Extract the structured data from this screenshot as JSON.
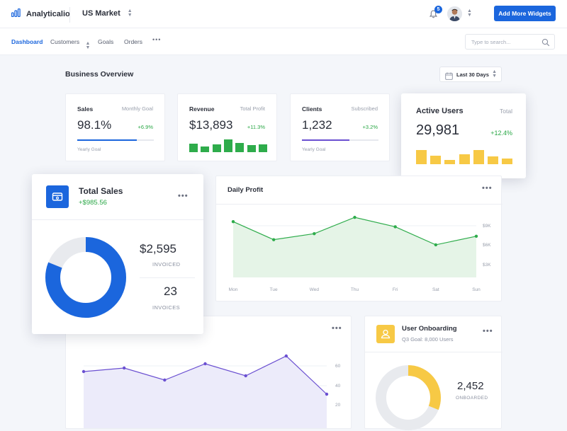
{
  "app": {
    "name": "Analyticalio",
    "market": "US Market",
    "notifications": "5",
    "add_widgets_label": "Add More Widgets"
  },
  "nav": {
    "items": [
      {
        "label": "Dashboard",
        "active": true
      },
      {
        "label": "Customers",
        "active": false
      },
      {
        "label": "Goals",
        "active": false
      },
      {
        "label": "Orders",
        "active": false
      }
    ],
    "more": "•••",
    "search_placeholder": "Type to search..."
  },
  "overview": {
    "title": "Business Overview",
    "range": "Last 30 Days"
  },
  "cards": {
    "sales": {
      "title": "Sales",
      "sub": "Monthly Goal",
      "value": "98.1%",
      "change": "+6.9%",
      "footer": "Yearly Goal",
      "progress": 0.78,
      "color": "#1b66dd"
    },
    "revenue": {
      "title": "Revenue",
      "sub": "Total Profit",
      "value": "$13,893",
      "change": "+11.3%",
      "color": "#2eac4b",
      "bars": [
        0.65,
        0.45,
        0.6,
        1.0,
        0.72,
        0.55,
        0.62
      ]
    },
    "clients": {
      "title": "Clients",
      "sub": "Subscribed",
      "value": "1,232",
      "change": "+3.2%",
      "footer": "Yearly Goal",
      "progress": 0.62,
      "color": "#6a4fd1"
    },
    "active_users": {
      "title": "Active Users",
      "sub": "Total",
      "value": "29,981",
      "change": "+12.4%",
      "color": "#f7c945",
      "bars": [
        1.0,
        0.62,
        0.32,
        0.7,
        1.0,
        0.55,
        0.42
      ]
    }
  },
  "total_sales": {
    "title": "Total Sales",
    "delta": "+$985.56",
    "invoiced_value": "$2,595",
    "invoiced_label": "INVOICED",
    "invoices_value": "23",
    "invoices_label": "INVOICES",
    "invoiced_share": 0.81,
    "color": "#1b66dd"
  },
  "daily_profit": {
    "title": "Daily Profit",
    "chart_data": {
      "type": "area",
      "x": [
        "Mon",
        "Tue",
        "Wed",
        "Thu",
        "Fri",
        "Sat",
        "Sun"
      ],
      "series": [
        {
          "values": [
            8.5,
            6.4,
            7.1,
            9.0,
            7.9,
            5.8,
            6.8
          ]
        }
      ],
      "yticks": [
        "$9K",
        "$6K",
        "$3K"
      ],
      "ylim": [
        2,
        10
      ],
      "color": "#2eac4b"
    }
  },
  "bottom_chart": {
    "chart_data": {
      "type": "area",
      "series": [
        {
          "values": [
            51,
            53.5,
            45,
            56.5,
            48,
            62,
            35
          ]
        }
      ],
      "yticks": [
        "60",
        "40",
        "20"
      ],
      "ylim": [
        10,
        70
      ],
      "color": "#6a4fd1"
    }
  },
  "onboarding": {
    "title": "User Onboarding",
    "sub": "Q3 Goal: 8,000 Users",
    "value": "2,452",
    "label": "ONBOARDED",
    "share": 0.31,
    "color": "#f7c945"
  },
  "icons": {
    "logo": "bar-chart-icon",
    "bell": "bell-icon",
    "search": "search-icon",
    "calendar": "calendar-icon",
    "wallet": "wallet-icon",
    "user": "user-icon"
  }
}
